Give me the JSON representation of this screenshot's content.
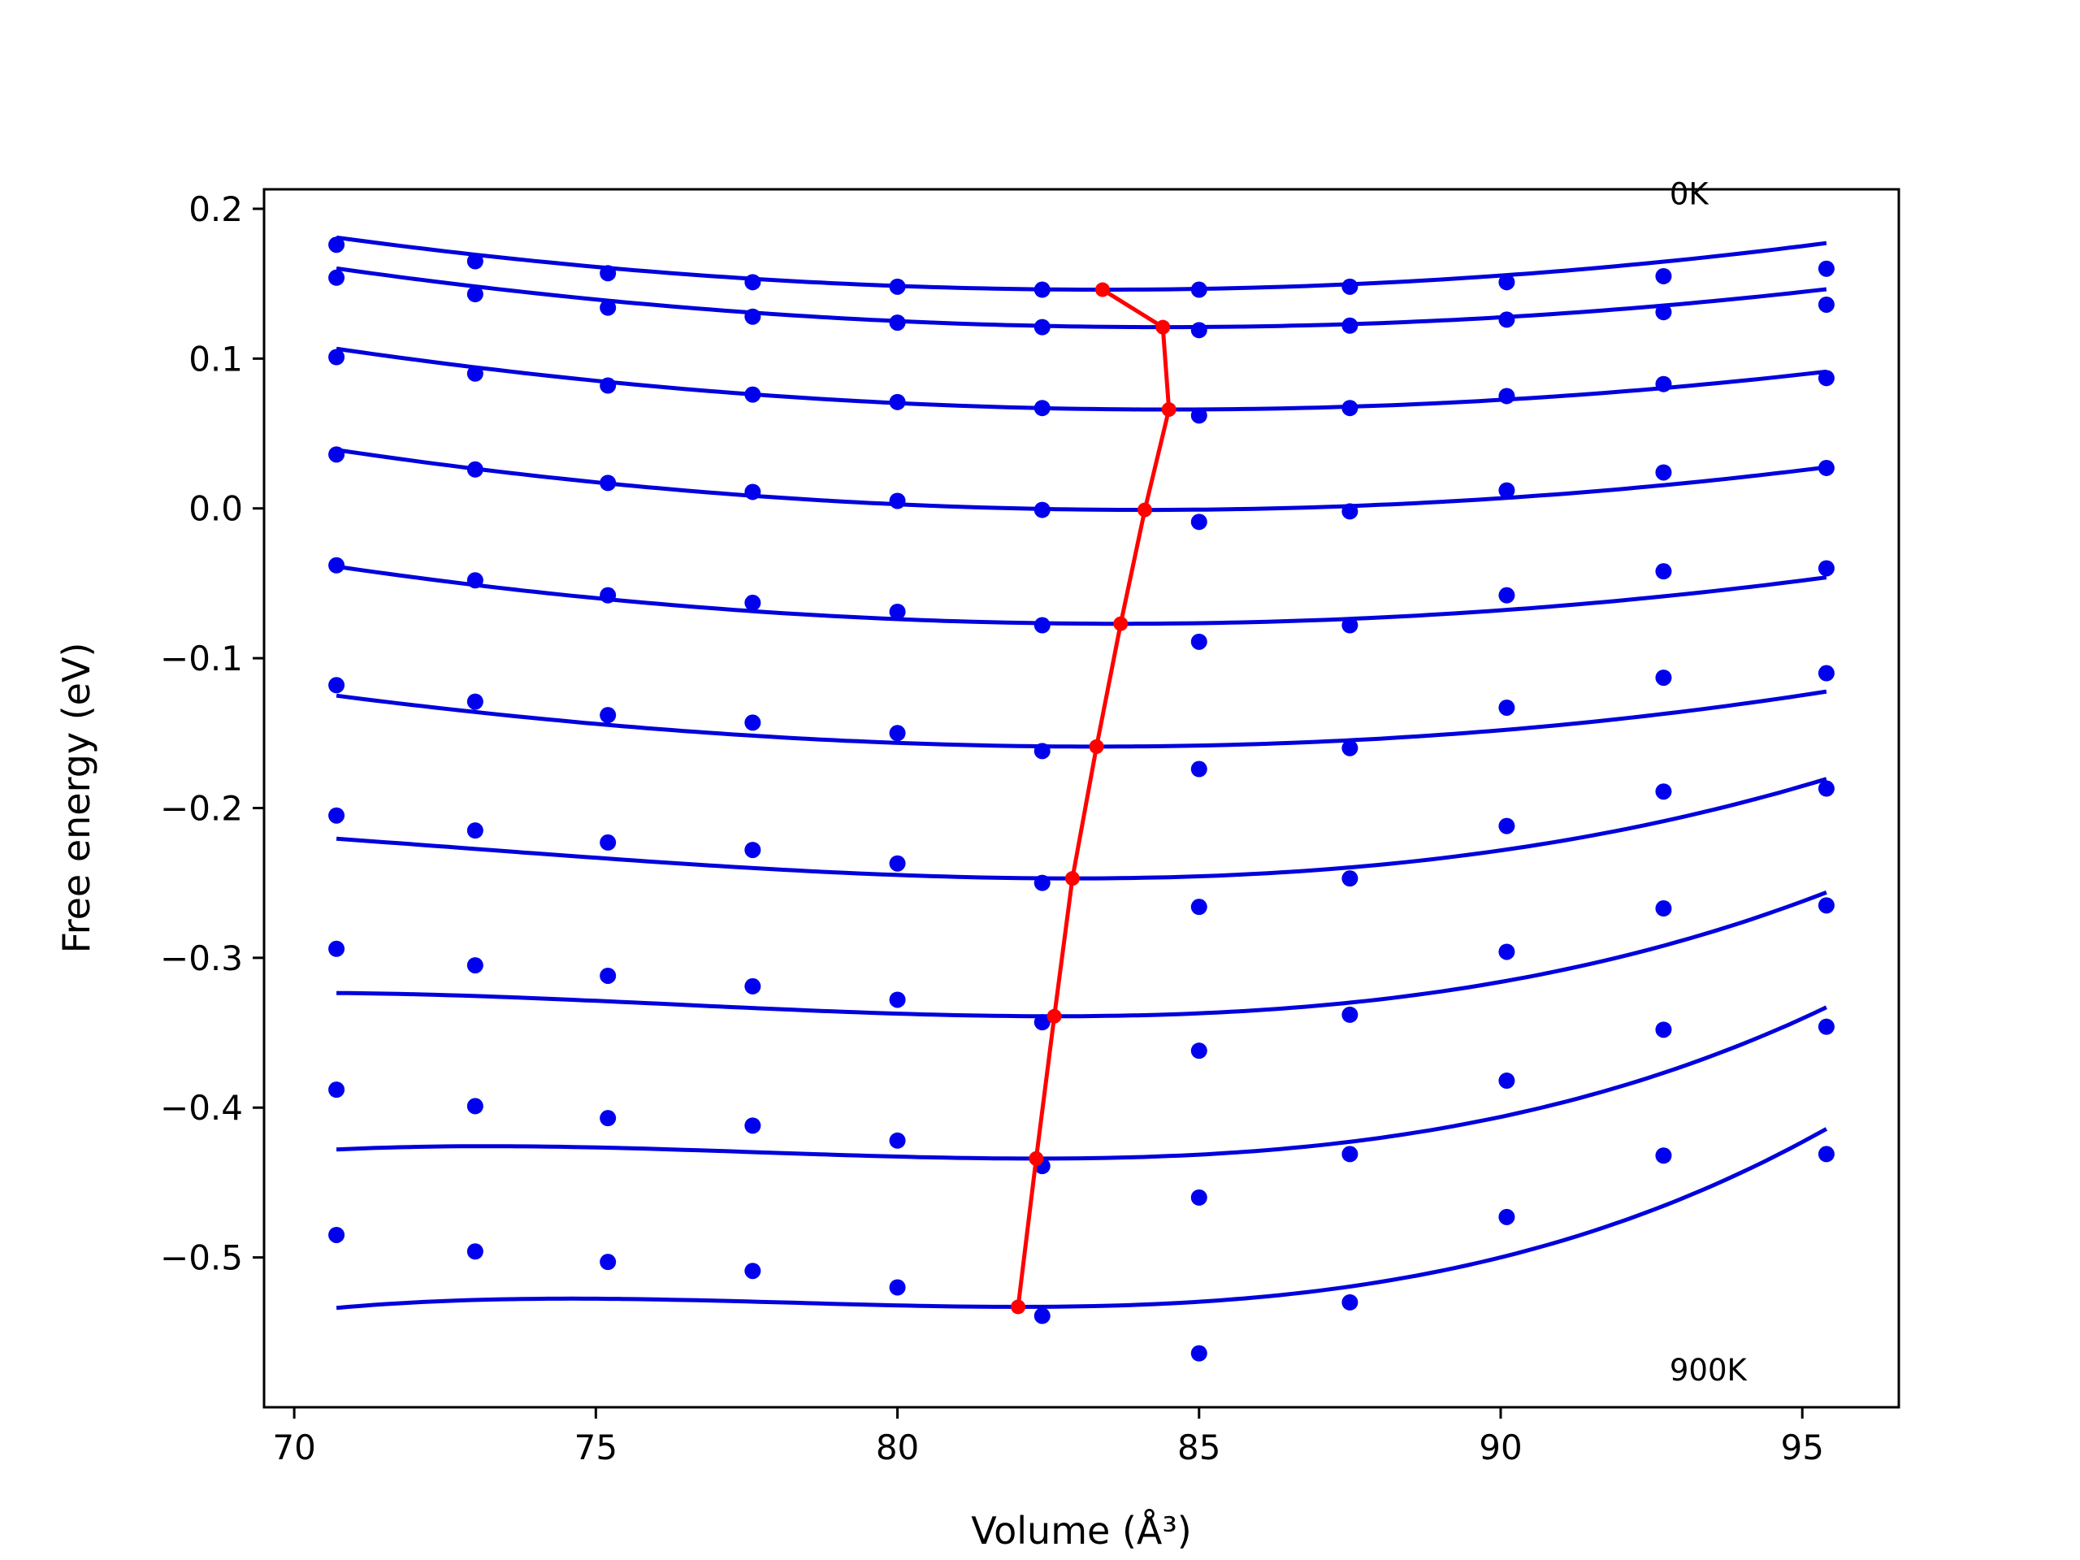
{
  "chart_data": {
    "type": "line",
    "title": "",
    "xlabel": "Volume (Å³)",
    "ylabel": "Free energy (eV)",
    "xlim": [
      69.5,
      96.6
    ],
    "ylim": [
      -0.6,
      0.213
    ],
    "xticks": [
      70,
      75,
      80,
      85,
      90,
      95
    ],
    "xtick_labels": [
      "70",
      "75",
      "80",
      "85",
      "90",
      "95"
    ],
    "yticks": [
      0.2,
      0.1,
      0.0,
      -0.1,
      -0.2,
      -0.3,
      -0.4,
      -0.5
    ],
    "ytick_labels": [
      "0.2",
      "0.1",
      "0.0",
      "−0.1",
      "−0.2",
      "−0.3",
      "−0.4",
      "−0.5"
    ],
    "grid": false,
    "annotations": [
      {
        "text": "0K",
        "x": 92.8,
        "y": 0.21
      },
      {
        "text": "900K",
        "x": 92.8,
        "y": -0.575
      }
    ],
    "colors": {
      "points": "#0000ee",
      "fit": "#0000dd",
      "minima": "#ff0000"
    },
    "volumes": [
      70.7,
      73.0,
      75.2,
      77.6,
      80.0,
      82.4,
      85.0,
      87.5,
      90.1,
      92.7,
      95.4
    ],
    "series": [
      {
        "points": [
          0.176,
          0.165,
          0.157,
          0.151,
          0.148,
          0.146,
          0.146,
          0.148,
          0.151,
          0.155,
          0.16
        ],
        "fit": {
          "v0": 83.4,
          "e0": 0.146,
          "a": 0.000216,
          "b": 0.0
        }
      },
      {
        "points": [
          0.154,
          0.143,
          0.134,
          0.128,
          0.124,
          0.121,
          0.119,
          0.122,
          0.126,
          0.131,
          0.136
        ],
        "fit": {
          "v0": 84.4,
          "e0": 0.121,
          "a": 0.000209,
          "b": 0.0
        }
      },
      {
        "points": [
          0.101,
          0.09,
          0.082,
          0.076,
          0.071,
          0.067,
          0.062,
          0.067,
          0.075,
          0.083,
          0.087
        ],
        "fit": {
          "v0": 84.5,
          "e0": 0.066,
          "a": 0.000213,
          "b": 0.0
        }
      },
      {
        "points": [
          0.036,
          0.026,
          0.017,
          0.011,
          0.005,
          -0.001,
          -0.009,
          -0.002,
          0.012,
          0.024,
          0.027
        ],
        "fit": {
          "v0": 84.1,
          "e0": -0.001,
          "a": 0.000223,
          "b": 0.0
        }
      },
      {
        "points": [
          -0.038,
          -0.048,
          -0.058,
          -0.063,
          -0.069,
          -0.078,
          -0.089,
          -0.078,
          -0.058,
          -0.042,
          -0.04
        ],
        "fit": {
          "v0": 83.7,
          "e0": -0.077,
          "a": 0.000226,
          "b": 0.0
        }
      },
      {
        "points": [
          -0.118,
          -0.129,
          -0.138,
          -0.143,
          -0.15,
          -0.162,
          -0.174,
          -0.16,
          -0.133,
          -0.113,
          -0.11
        ],
        "fit": {
          "v0": 83.3,
          "e0": -0.159,
          "a": 0.000233,
          "b": 1.5e-06
        }
      },
      {
        "points": [
          -0.205,
          -0.215,
          -0.223,
          -0.228,
          -0.237,
          -0.25,
          -0.266,
          -0.247,
          -0.212,
          -0.189,
          -0.187
        ],
        "fit": {
          "v0": 82.9,
          "e0": -0.247,
          "a": 0.0003,
          "b": 1e-05
        }
      },
      {
        "points": [
          -0.294,
          -0.305,
          -0.312,
          -0.319,
          -0.328,
          -0.343,
          -0.362,
          -0.338,
          -0.296,
          -0.267,
          -0.265
        ],
        "fit": {
          "v0": 82.6,
          "e0": -0.339,
          "a": 0.0003,
          "b": 1.6e-05
        }
      },
      {
        "points": [
          -0.388,
          -0.399,
          -0.407,
          -0.412,
          -0.422,
          -0.439,
          -0.46,
          -0.431,
          -0.382,
          -0.348,
          -0.346
        ],
        "fit": {
          "v0": 82.3,
          "e0": -0.434,
          "a": 0.0003,
          "b": 2.2e-05
        }
      },
      {
        "points": [
          -0.485,
          -0.496,
          -0.503,
          -0.509,
          -0.52,
          -0.539,
          -0.564,
          -0.53,
          -0.473,
          -0.432,
          -0.431
        ],
        "fit": {
          "v0": 82.0,
          "e0": -0.533,
          "a": 0.0003,
          "b": 2.7e-05
        }
      }
    ],
    "minima": [
      {
        "x": 83.4,
        "y": 0.146
      },
      {
        "x": 84.4,
        "y": 0.121
      },
      {
        "x": 84.5,
        "y": 0.066
      },
      {
        "x": 84.1,
        "y": -0.001
      },
      {
        "x": 83.7,
        "y": -0.077
      },
      {
        "x": 83.3,
        "y": -0.159
      },
      {
        "x": 82.9,
        "y": -0.247
      },
      {
        "x": 82.6,
        "y": -0.339
      },
      {
        "x": 82.3,
        "y": -0.434
      },
      {
        "x": 82.0,
        "y": -0.533
      }
    ]
  }
}
